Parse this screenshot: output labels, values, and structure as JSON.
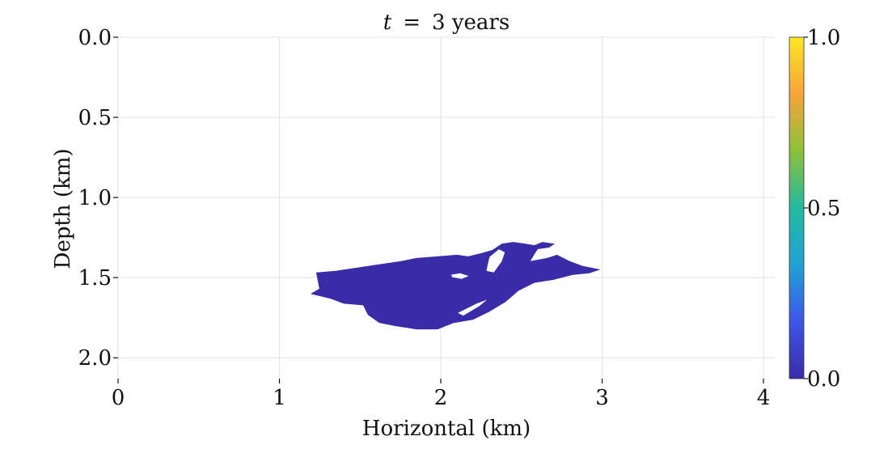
{
  "chart_data": {
    "type": "heatmap",
    "title_var": "t",
    "title_eq": "=",
    "title_value": "3 years",
    "xlabel": "Horizontal (km)",
    "ylabel": "Depth (km)",
    "xlim": [
      0,
      4.07
    ],
    "ylim": [
      0,
      2.13
    ],
    "y_inverted": true,
    "xticks": [
      0,
      1,
      2,
      3,
      4
    ],
    "xtick_labels": [
      "0",
      "1",
      "2",
      "3",
      "4"
    ],
    "yticks": [
      0.0,
      0.5,
      1.0,
      1.5,
      2.0
    ],
    "ytick_labels": [
      "0.0",
      "0.5",
      "1.0",
      "1.5",
      "2.0"
    ],
    "grid": true,
    "colormap": "plasma",
    "colorbar": {
      "range": [
        0.0,
        1.0
      ],
      "ticks": [
        0.0,
        0.5,
        1.0
      ],
      "tick_labels": [
        "0.0",
        "0.5",
        "1.0"
      ],
      "stops": [
        "#3a2ca8",
        "#3e55e8",
        "#1fa3d4",
        "#25b9a0",
        "#8cc13a",
        "#f7a43a",
        "#fde725"
      ]
    },
    "plume": {
      "value": 0.0,
      "color": "#3a2ca8",
      "outline": [
        [
          1.23,
          1.47
        ],
        [
          1.35,
          1.46
        ],
        [
          1.55,
          1.43
        ],
        [
          1.75,
          1.4
        ],
        [
          1.85,
          1.38
        ],
        [
          1.98,
          1.37
        ],
        [
          2.1,
          1.36
        ],
        [
          2.17,
          1.37
        ],
        [
          2.25,
          1.35
        ],
        [
          2.32,
          1.33
        ],
        [
          2.38,
          1.29
        ],
        [
          2.45,
          1.28
        ],
        [
          2.52,
          1.29
        ],
        [
          2.58,
          1.3
        ],
        [
          2.63,
          1.28
        ],
        [
          2.7,
          1.29
        ],
        [
          2.67,
          1.31
        ],
        [
          2.6,
          1.32
        ],
        [
          2.58,
          1.35
        ],
        [
          2.55,
          1.4
        ],
        [
          2.66,
          1.38
        ],
        [
          2.72,
          1.36
        ],
        [
          2.8,
          1.4
        ],
        [
          2.88,
          1.43
        ],
        [
          2.98,
          1.45
        ],
        [
          2.92,
          1.47
        ],
        [
          2.82,
          1.48
        ],
        [
          2.7,
          1.51
        ],
        [
          2.58,
          1.53
        ],
        [
          2.48,
          1.58
        ],
        [
          2.4,
          1.65
        ],
        [
          2.3,
          1.71
        ],
        [
          2.2,
          1.76
        ],
        [
          2.08,
          1.78
        ],
        [
          1.98,
          1.82
        ],
        [
          1.85,
          1.82
        ],
        [
          1.72,
          1.8
        ],
        [
          1.62,
          1.78
        ],
        [
          1.55,
          1.73
        ],
        [
          1.52,
          1.67
        ],
        [
          1.4,
          1.66
        ],
        [
          1.32,
          1.63
        ],
        [
          1.2,
          1.6
        ],
        [
          1.25,
          1.57
        ],
        [
          1.24,
          1.52
        ]
      ],
      "holes": [
        [
          [
            2.3,
            1.37
          ],
          [
            2.36,
            1.32
          ],
          [
            2.4,
            1.34
          ],
          [
            2.38,
            1.4
          ],
          [
            2.33,
            1.47
          ],
          [
            2.28,
            1.46
          ],
          [
            2.29,
            1.41
          ]
        ],
        [
          [
            2.06,
            1.48
          ],
          [
            2.12,
            1.47
          ],
          [
            2.18,
            1.49
          ],
          [
            2.13,
            1.51
          ],
          [
            2.07,
            1.5
          ]
        ],
        [
          [
            2.1,
            1.72
          ],
          [
            2.22,
            1.66
          ],
          [
            2.3,
            1.63
          ],
          [
            2.24,
            1.68
          ],
          [
            2.14,
            1.74
          ]
        ]
      ]
    }
  }
}
